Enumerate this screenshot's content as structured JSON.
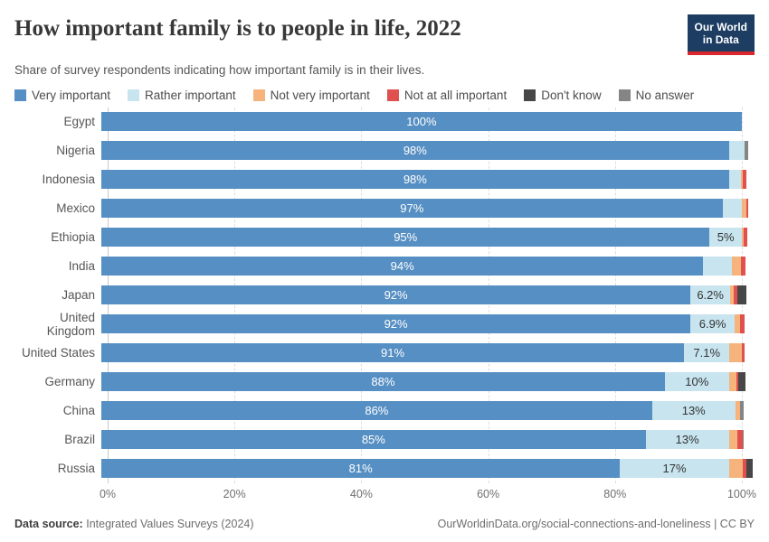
{
  "logo": {
    "line1": "Our World",
    "line2": "in Data",
    "bg": "#1d3d63",
    "accent": "#d7282f"
  },
  "chart_data": {
    "type": "bar",
    "orientation": "horizontal-stacked",
    "title": "How important family is to people in life, 2022",
    "subtitle": "Share of survey respondents indicating how important family is in their lives.",
    "legend_position": "top",
    "grid": "vertical-dashed",
    "xmax": 102,
    "x_ticks": [
      {
        "label": "0%",
        "value": 0
      },
      {
        "label": "20%",
        "value": 20
      },
      {
        "label": "40%",
        "value": 40
      },
      {
        "label": "60%",
        "value": 60
      },
      {
        "label": "80%",
        "value": 80
      },
      {
        "label": "100%",
        "value": 100
      }
    ],
    "categories": [
      "Egypt",
      "Nigeria",
      "Indonesia",
      "Mexico",
      "Ethiopia",
      "India",
      "Japan",
      "United Kingdom",
      "United States",
      "Germany",
      "China",
      "Brazil",
      "Russia"
    ],
    "series": [
      {
        "name": "Very important",
        "color": "#568fc3",
        "values": [
          100,
          98,
          98,
          97,
          95,
          94,
          92,
          92,
          91,
          88,
          86,
          85,
          81
        ],
        "labels": [
          "100%",
          "98%",
          "98%",
          "97%",
          "95%",
          "94%",
          "92%",
          "92%",
          "91%",
          "88%",
          "86%",
          "85%",
          "81%"
        ]
      },
      {
        "name": "Rather important",
        "color": "#c7e4ef",
        "values": [
          0,
          2.5,
          1.9,
          3,
          5,
          4.5,
          6.2,
          6.9,
          7.1,
          10,
          13,
          13,
          17
        ],
        "labels": [
          "",
          "",
          "",
          "",
          "5%",
          "",
          "6.2%",
          "6.9%",
          "7.1%",
          "10%",
          "13%",
          "13%",
          "17%"
        ]
      },
      {
        "name": "Not very important",
        "color": "#f6b37c",
        "values": [
          0,
          0,
          0.3,
          0.7,
          0.3,
          1.4,
          0.6,
          0.8,
          1.9,
          1.2,
          0.8,
          1.3,
          2.1
        ],
        "labels": []
      },
      {
        "name": "Not at all important",
        "color": "#e0504e",
        "values": [
          0,
          0,
          0.6,
          0.3,
          0.6,
          0.7,
          0.5,
          0.7,
          0.4,
          0.3,
          0,
          0.8,
          0.7
        ],
        "labels": []
      },
      {
        "name": "Don't know",
        "color": "#474747",
        "values": [
          0,
          0,
          0,
          0,
          0,
          0,
          1.5,
          0,
          0,
          1.1,
          0,
          0,
          0.9
        ],
        "labels": []
      },
      {
        "name": "No answer",
        "color": "#858585",
        "values": [
          0,
          0.5,
          0,
          0,
          0,
          0,
          0,
          0,
          0,
          0,
          0.5,
          0.2,
          0
        ],
        "labels": []
      }
    ]
  },
  "footer": {
    "source_label": "Data source:",
    "source_value": "Integrated Values Surveys (2024)",
    "credit": "OurWorldinData.org/social-connections-and-loneliness | CC BY"
  }
}
